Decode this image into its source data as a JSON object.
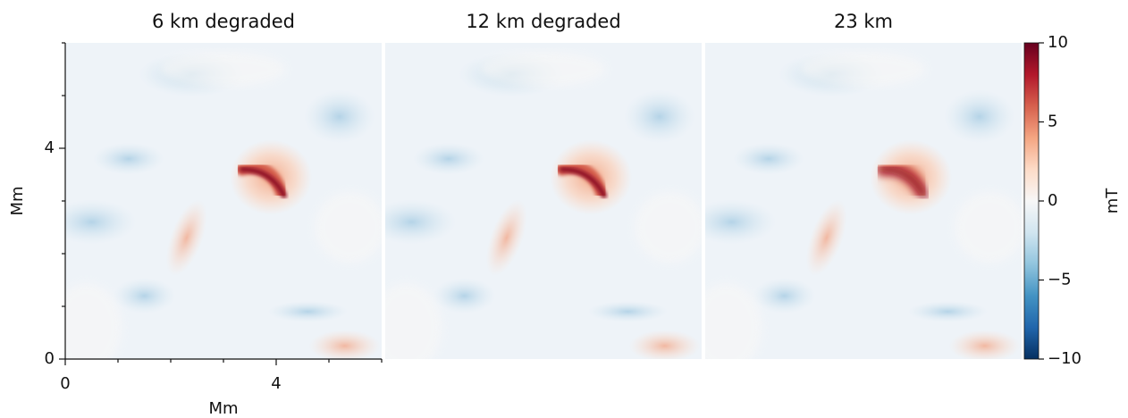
{
  "chart_data": {
    "type": "heatmap",
    "panels": [
      {
        "title": "6 km degraded"
      },
      {
        "title": "12 km degraded"
      },
      {
        "title": "23 km"
      }
    ],
    "xlabel": "Mm",
    "ylabel": "Mm",
    "xlim": [
      0,
      6
    ],
    "xticks": [
      0,
      4
    ],
    "xminorticks": [
      1,
      2,
      3,
      5,
      6
    ],
    "ylim": [
      0,
      6
    ],
    "yticks": [
      0,
      4
    ],
    "yminorticks": [
      1,
      2,
      3,
      5,
      6
    ],
    "colorbar": {
      "label": "mT",
      "colormap": "RdBu_r",
      "lim": [
        -10,
        10
      ],
      "ticks": [
        {
          "value": -10,
          "label": "−10"
        },
        {
          "value": -5,
          "label": "−5"
        },
        0,
        5,
        10
      ]
    }
  }
}
